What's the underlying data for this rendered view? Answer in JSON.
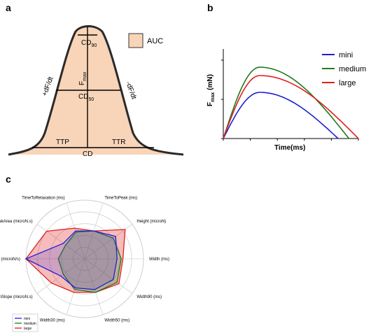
{
  "panels": {
    "a": "a",
    "b": "b",
    "c": "c"
  },
  "panel_a": {
    "legend_label": "AUC",
    "fill_color": "#f8d4b8",
    "labels": {
      "cd90_main": "CD",
      "cd90_sub": "90",
      "cd50_main": "CD",
      "cd50_sub": "50",
      "fmax_main": "F",
      "fmax_sub": "max",
      "rise_slope": "+dF/dt",
      "fall_slope": "-dF/dt",
      "ttp": "TTP",
      "ttr": "TTR",
      "cd": "CD"
    }
  },
  "colors": {
    "mini": "#1f1fd6",
    "medium": "#1e7a1e",
    "large": "#e01f1f"
  },
  "chart_data": [
    {
      "panel": "b",
      "type": "line",
      "xlabel": "Time(ms)",
      "ylabel_main": "F",
      "ylabel_sub": "max",
      "ylabel_unit": "(mN)",
      "legend_position": "right",
      "x": [
        0,
        0.2,
        0.4,
        0.6,
        0.8,
        1.0
      ],
      "series": [
        {
          "name": "mini",
          "peak": 0.55,
          "end": 0.85
        },
        {
          "name": "medium",
          "peak": 0.85,
          "end": 0.93
        },
        {
          "name": "large",
          "peak": 0.75,
          "end": 1.0
        }
      ]
    },
    {
      "panel": "c",
      "type": "radar",
      "axes": [
        "TimeToPeak (ms)",
        "Height (microN)",
        "Width (ms)",
        "Width90 (ms)",
        "Width50 (ms)",
        "Width30 (ms)",
        "MinSlope (microN.s)",
        "MaxSlope (microN/s)",
        "PeakArea (microN.s)",
        "TimeToRelaxation (ms)"
      ],
      "series": [
        {
          "name": "mini",
          "values": [
            0.5,
            0.65,
            0.55,
            0.6,
            0.55,
            0.52,
            0.5,
            1.0,
            0.45,
            0.5
          ]
        },
        {
          "name": "medium",
          "values": [
            0.5,
            0.6,
            0.62,
            0.68,
            0.6,
            0.55,
            0.45,
            0.45,
            0.4,
            0.48
          ]
        },
        {
          "name": "large",
          "values": [
            0.5,
            0.85,
            0.65,
            0.72,
            0.6,
            0.6,
            0.7,
            1.0,
            0.8,
            0.55
          ]
        }
      ],
      "legend_position": "bottom-left"
    }
  ]
}
